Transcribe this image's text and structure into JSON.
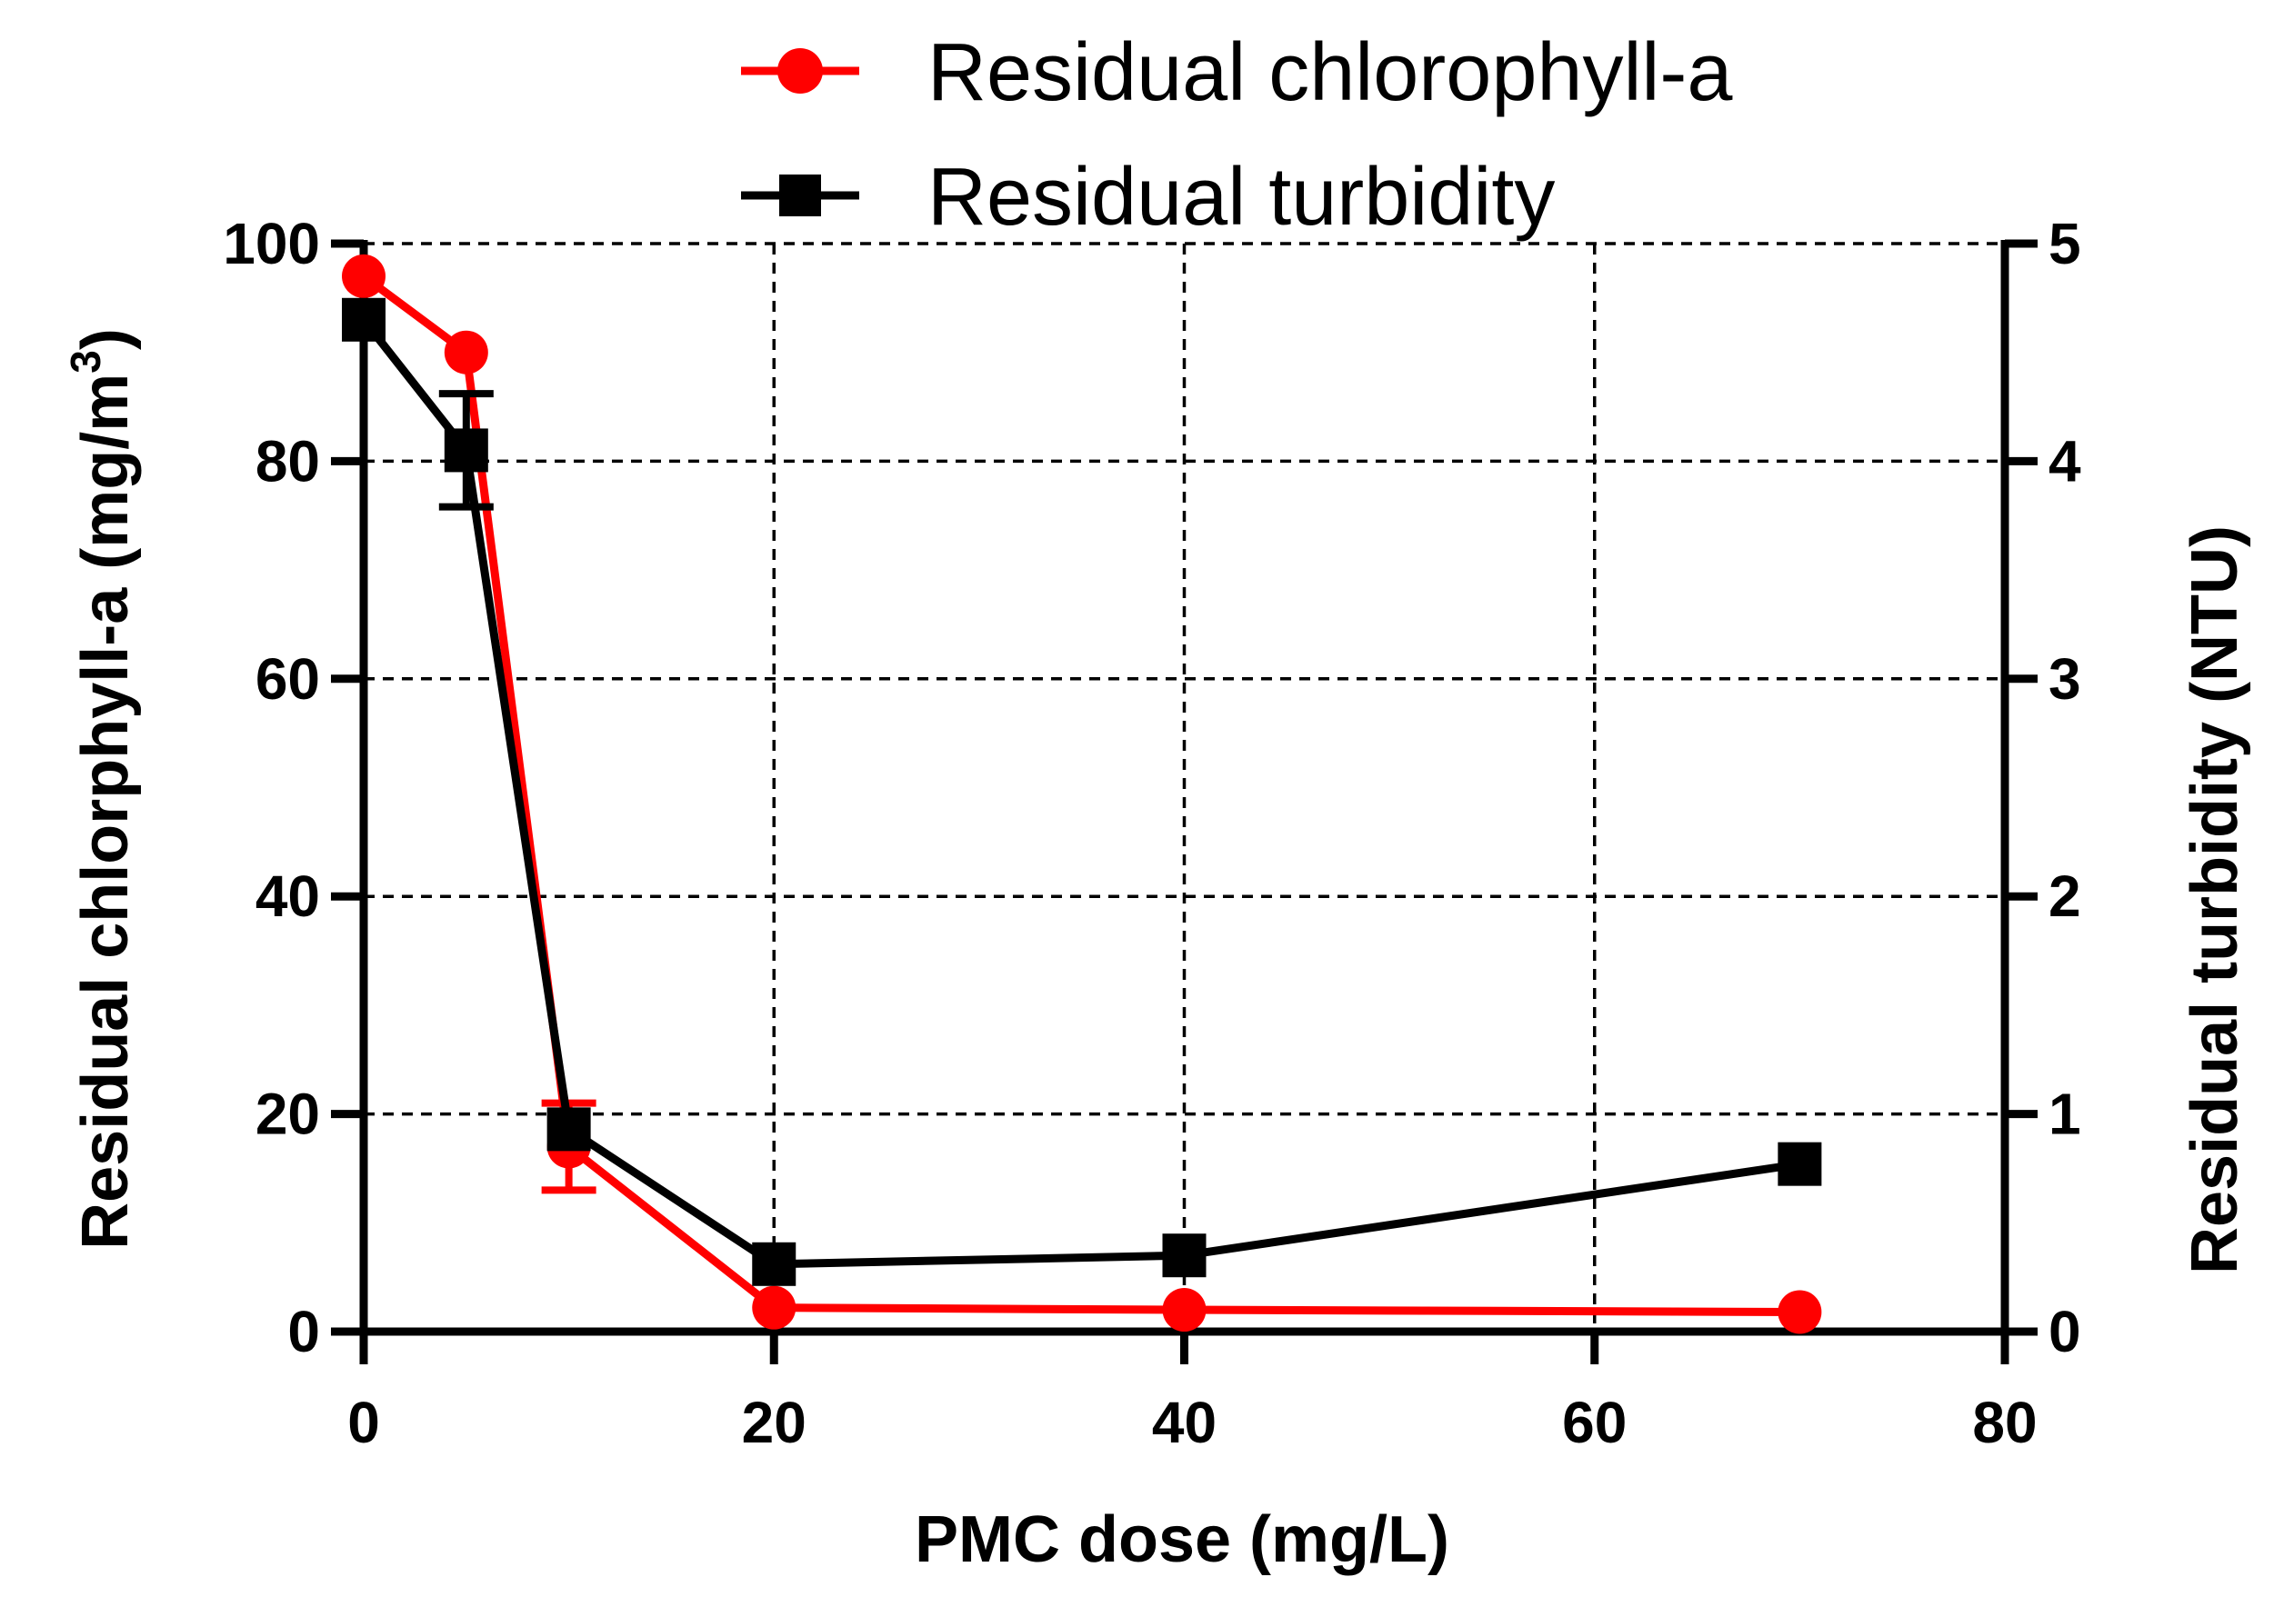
{
  "chart_data": {
    "type": "line",
    "xlabel": "PMC dose (mg/L)",
    "ylabel_left": {
      "text": "Residual chlorphyll-a (mg/m",
      "superscript": "3",
      "suffix": ")"
    },
    "ylabel_right": "Residual turbidity (NTU)",
    "xlim": [
      0,
      80
    ],
    "ylim_left": [
      0,
      100
    ],
    "ylim_right": [
      0,
      5
    ],
    "x_ticks": [
      0,
      20,
      40,
      60,
      80
    ],
    "y_left_ticks": [
      0,
      20,
      40,
      60,
      80,
      100
    ],
    "y_right_ticks": [
      0,
      1,
      2,
      3,
      4,
      5
    ],
    "grid": true,
    "legend_position": "top-center",
    "series": [
      {
        "name": "Residual chlorophyll-a",
        "axis": "left",
        "color": "#ff0000",
        "marker": "circle",
        "x": [
          0,
          5,
          10,
          20,
          40,
          70
        ],
        "y": [
          97,
          90,
          17,
          2.2,
          2.0,
          1.8
        ],
        "error": [
          0,
          0,
          4,
          0,
          0,
          0
        ]
      },
      {
        "name": "Residual turbidity",
        "axis": "right",
        "color": "#000000",
        "marker": "square",
        "x": [
          0,
          5,
          10,
          20,
          40,
          70
        ],
        "y": [
          4.65,
          4.05,
          0.93,
          0.31,
          0.35,
          0.77
        ],
        "error": [
          0,
          0.26,
          0,
          0,
          0,
          0
        ]
      }
    ]
  }
}
